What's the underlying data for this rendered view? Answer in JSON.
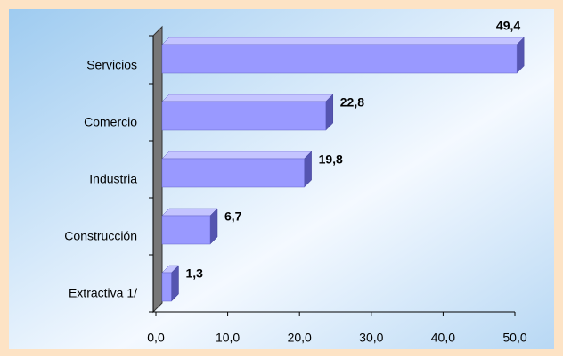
{
  "chart_data": {
    "type": "bar",
    "orientation": "horizontal",
    "categories": [
      "Servicios",
      "Comercio",
      "Industria",
      "Construcción",
      "Extractiva 1/"
    ],
    "values": [
      49.4,
      22.8,
      19.8,
      6.7,
      1.3
    ],
    "value_labels": [
      "49,4",
      "22,8",
      "19,8",
      "6,7",
      "1,3"
    ],
    "color": "#9999ff",
    "xlim": [
      0,
      50
    ],
    "xticks": [
      {
        "value": 0,
        "label": "0,0"
      },
      {
        "value": 10,
        "label": "10,0"
      },
      {
        "value": 20,
        "label": "20,0"
      },
      {
        "value": 30,
        "label": "30,0"
      },
      {
        "value": 40,
        "label": "40,0"
      },
      {
        "value": 50,
        "label": "50,0"
      }
    ]
  }
}
